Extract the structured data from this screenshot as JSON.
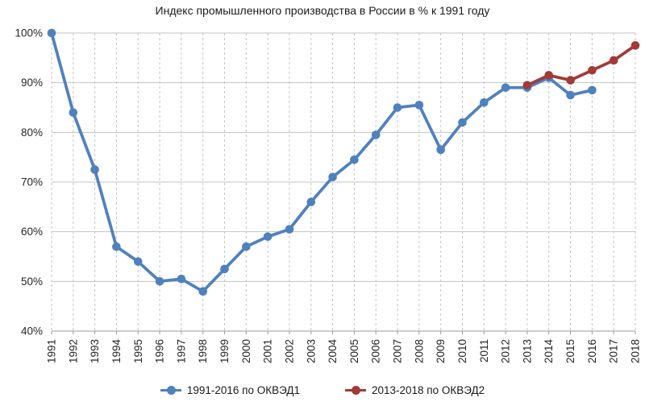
{
  "chart_data": {
    "type": "line",
    "title": "Индекс промышленного производства в России в % к 1991 году",
    "x_categories": [
      "1991",
      "1992",
      "1993",
      "1994",
      "1995",
      "1996",
      "1997",
      "1998",
      "1999",
      "2000",
      "2001",
      "2002",
      "2003",
      "2004",
      "2005",
      "2006",
      "2007",
      "2008",
      "2009",
      "2010",
      "2011",
      "2012",
      "2013",
      "2014",
      "2015",
      "2016",
      "2017",
      "2018"
    ],
    "ylim": [
      40,
      100
    ],
    "ytick_step": 10,
    "ytick_suffix": "%",
    "grid": true,
    "legend_position": "bottom",
    "series": [
      {
        "name": "1991-2016 по ОКВЭД1",
        "color": "#4F81BD",
        "x_start": "1991",
        "values": [
          100,
          84,
          72.5,
          57,
          54,
          50,
          50.5,
          48,
          52.5,
          57,
          59,
          60.5,
          66,
          71,
          74.5,
          79.5,
          85,
          85.5,
          76.5,
          82,
          86,
          89,
          89,
          91,
          87.5,
          88.5
        ]
      },
      {
        "name": "2013-2018 по ОКВЭД2",
        "color": "#A03B38",
        "x_start": "2013",
        "values": [
          89.5,
          91.5,
          90.5,
          92.5,
          94.5,
          97.5
        ]
      }
    ]
  }
}
